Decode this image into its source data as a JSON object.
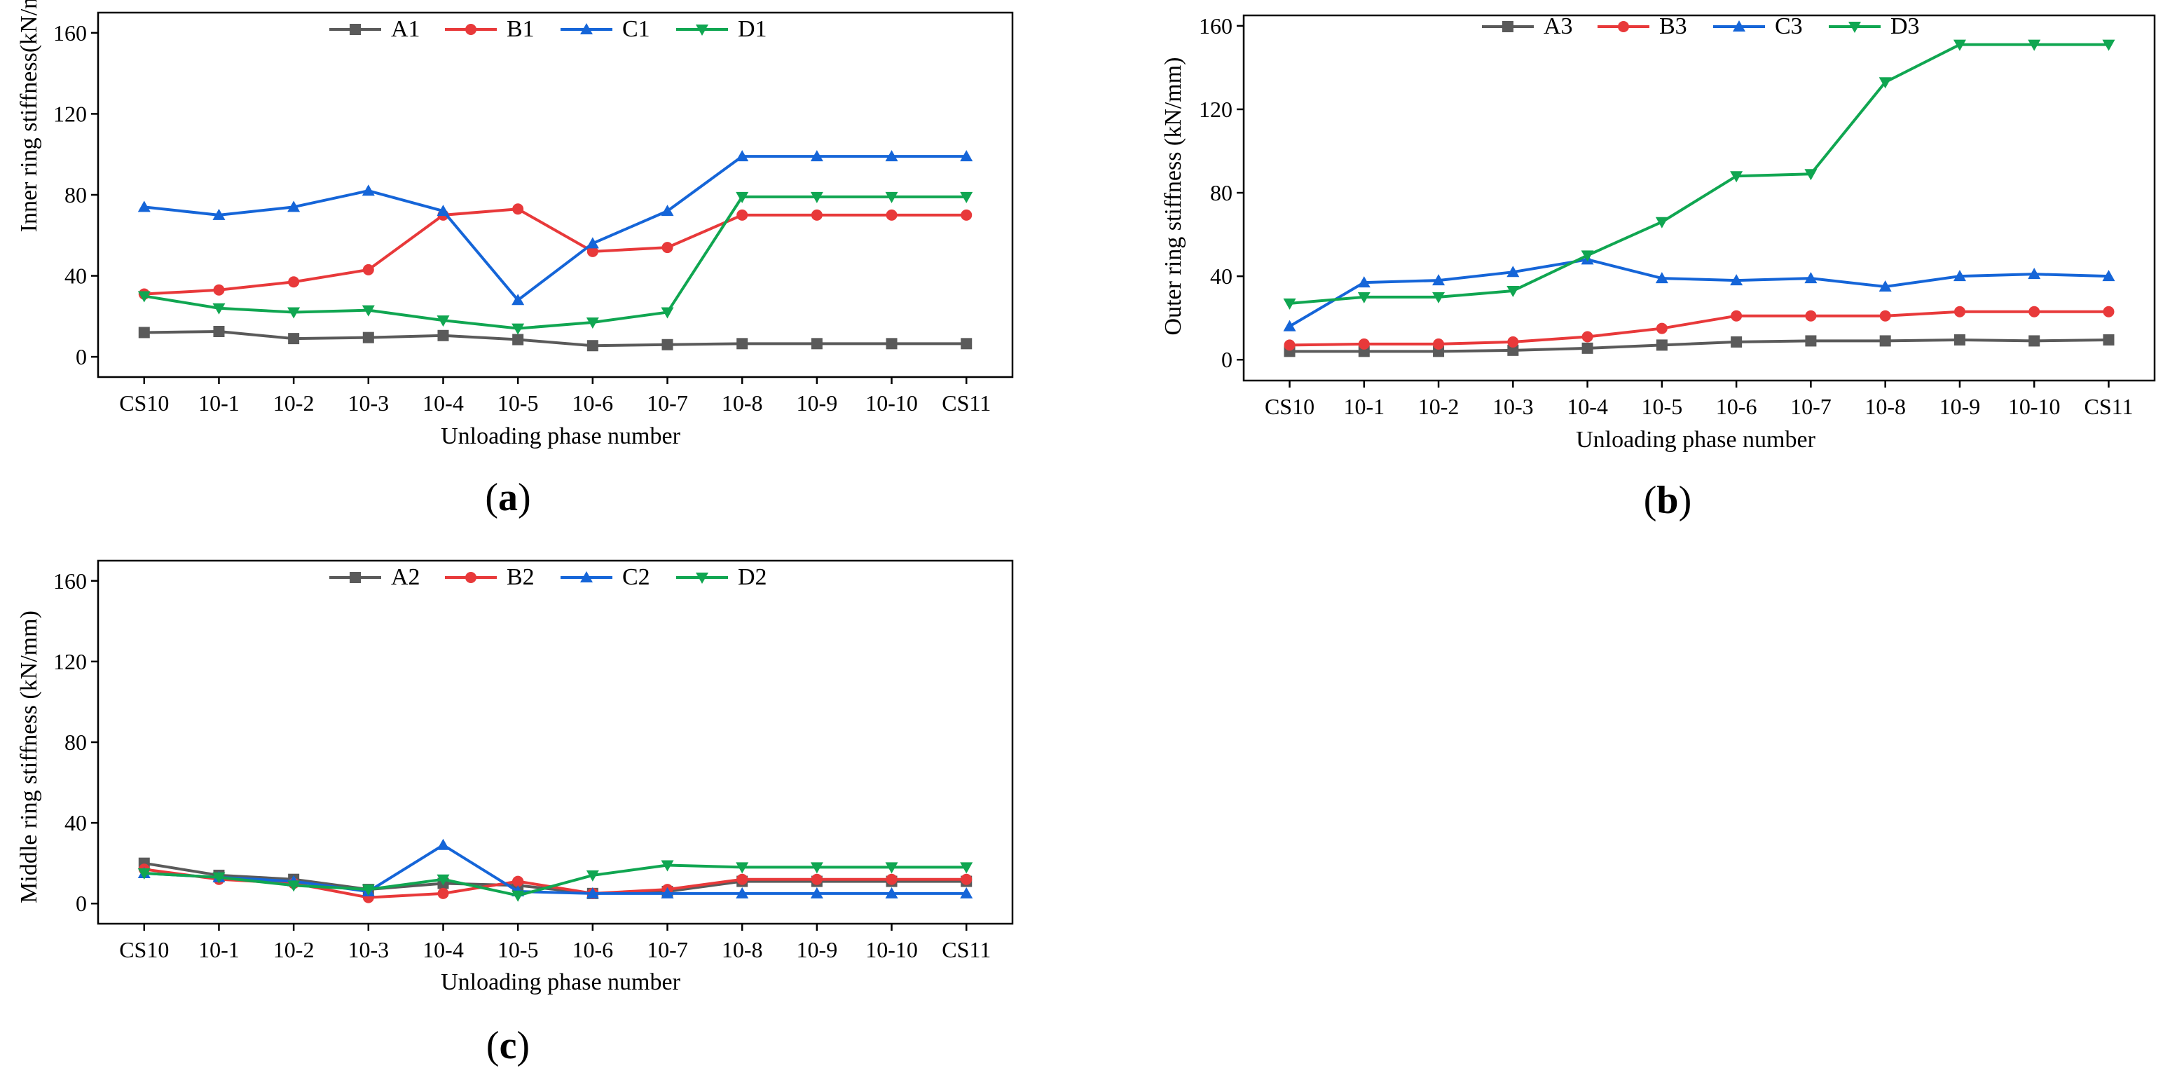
{
  "colors": {
    "A": "#5a5a5a",
    "B": "#e8393a",
    "C": "#1565d8",
    "D": "#10a651"
  },
  "chart_data": [
    {
      "panel": "(a)",
      "panel_letter": "a",
      "type": "line",
      "title": "",
      "xlabel": "Unloading phase number",
      "ylabel": "Inner ring stiffness(kN/mm)",
      "ylim": [
        -10,
        170
      ],
      "yticks": [
        0,
        40,
        80,
        120,
        160
      ],
      "categories": [
        "CS10",
        "10-1",
        "10-2",
        "10-3",
        "10-4",
        "10-5",
        "10-6",
        "10-7",
        "10-8",
        "10-9",
        "10-10",
        "CS11"
      ],
      "legend_position": "top-center",
      "series": [
        {
          "name": "A1",
          "key": "A",
          "marker": "square",
          "values": [
            12,
            12.5,
            9,
            9.5,
            10.5,
            8.5,
            5.5,
            6,
            6.5,
            6.5,
            6.5,
            6.5
          ]
        },
        {
          "name": "B1",
          "key": "B",
          "marker": "circle",
          "values": [
            31,
            33,
            37,
            43,
            70,
            73,
            52,
            54,
            70,
            70,
            70,
            70
          ]
        },
        {
          "name": "C1",
          "key": "C",
          "marker": "triangle-up",
          "values": [
            74,
            70,
            74,
            82,
            72,
            28,
            56,
            72,
            99,
            99,
            99,
            99
          ]
        },
        {
          "name": "D1",
          "key": "D",
          "marker": "triangle-down",
          "values": [
            30,
            24,
            22,
            23,
            18,
            14,
            17,
            22,
            79,
            79,
            79,
            79
          ]
        }
      ]
    },
    {
      "panel": "(b)",
      "panel_letter": "b",
      "type": "line",
      "title": "",
      "xlabel": "Unloading phase number",
      "ylabel": "Outer ring stiffness (kN/mm)",
      "ylim": [
        -10,
        165
      ],
      "yticks": [
        0,
        40,
        80,
        120,
        160
      ],
      "categories": [
        "CS10",
        "10-1",
        "10-2",
        "10-3",
        "10-4",
        "10-5",
        "10-6",
        "10-7",
        "10-8",
        "10-9",
        "10-10",
        "CS11"
      ],
      "legend_position": "top-center",
      "series": [
        {
          "name": "A3",
          "key": "A",
          "marker": "square",
          "values": [
            4,
            4,
            4,
            4.5,
            5.5,
            7,
            8.5,
            9,
            9,
            9.5,
            9,
            9.5
          ]
        },
        {
          "name": "B3",
          "key": "B",
          "marker": "circle",
          "values": [
            7,
            7.5,
            7.5,
            8.5,
            11,
            15,
            21,
            21,
            21,
            23,
            23,
            23
          ]
        },
        {
          "name": "C3",
          "key": "C",
          "marker": "triangle-up",
          "values": [
            16,
            37,
            38,
            42,
            48,
            39,
            38,
            39,
            35,
            40,
            41,
            40
          ]
        },
        {
          "name": "D3",
          "key": "D",
          "marker": "triangle-down",
          "values": [
            27,
            30,
            30,
            33,
            50,
            66,
            88,
            89,
            133,
            151,
            151,
            151
          ]
        }
      ]
    },
    {
      "panel": "(c)",
      "panel_letter": "c",
      "type": "line",
      "title": "",
      "xlabel": "Unloading phase number",
      "ylabel": "Middle ring stiffness (kN/mm)",
      "ylim": [
        -10,
        170
      ],
      "yticks": [
        0,
        40,
        80,
        120,
        160
      ],
      "categories": [
        "CS10",
        "10-1",
        "10-2",
        "10-3",
        "10-4",
        "10-5",
        "10-6",
        "10-7",
        "10-8",
        "10-9",
        "10-10",
        "CS11"
      ],
      "legend_position": "top-center",
      "series": [
        {
          "name": "A2",
          "key": "A",
          "marker": "square",
          "values": [
            20,
            14,
            12,
            7,
            10,
            9,
            5,
            6,
            11,
            11,
            11,
            11
          ]
        },
        {
          "name": "B2",
          "key": "B",
          "marker": "circle",
          "values": [
            17,
            12,
            10,
            3,
            5,
            11,
            5,
            7,
            12,
            12,
            12,
            12
          ]
        },
        {
          "name": "C2",
          "key": "C",
          "marker": "triangle-up",
          "values": [
            15,
            13,
            11,
            6,
            29,
            6,
            5,
            5,
            5,
            5,
            5,
            5
          ]
        },
        {
          "name": "D2",
          "key": "D",
          "marker": "triangle-down",
          "values": [
            15,
            13,
            9,
            7,
            12,
            4,
            14,
            19,
            18,
            18,
            18,
            18
          ]
        }
      ]
    }
  ]
}
